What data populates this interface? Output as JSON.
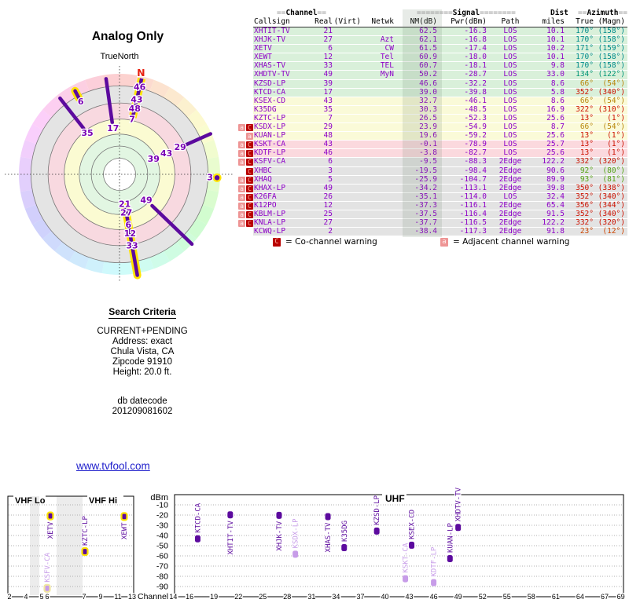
{
  "radar": {
    "title": "Analog Only",
    "north_label": "TrueNorth",
    "north_marker": "N",
    "spoke_color": "#5c0a9e",
    "label_color": "#7a00b4",
    "highlight_color": "#ffe400",
    "bands": {
      "green": "#e2f6e2",
      "yellow": "#fbfbd2",
      "pink": "#f8d9e0",
      "gray": "#e4e4e4"
    },
    "ring_fracs": [
      0.16,
      0.28,
      0.4,
      0.55,
      0.71,
      0.88
    ],
    "spokes": [
      {
        "az": 352,
        "labels": [
          {
            "t": "17",
            "r": 0.46
          }
        ],
        "line": [
          0.52,
          0.96
        ],
        "style": "plain"
      },
      {
        "az": 322,
        "labels": [
          {
            "t": "35",
            "r": 0.52
          }
        ],
        "line": [
          0.58,
          0.96
        ],
        "style": "plain"
      },
      {
        "az": 332,
        "labels": [
          {
            "t": "6",
            "r": 0.82
          }
        ],
        "line": [
          0.86,
          0.94
        ],
        "style": "yellow"
      },
      {
        "az": 13,
        "labels": [
          {
            "t": "46",
            "r": 0.89
          },
          {
            "t": "43",
            "r": 0.76
          },
          {
            "t": "48",
            "r": 0.67
          },
          {
            "t": "7",
            "r": 0.56
          }
        ],
        "line": [
          0.58,
          0.99
        ],
        "style": "yellow-dashed"
      },
      {
        "az": 66,
        "labels": [
          {
            "t": "39",
            "r": 0.37
          },
          {
            "t": "43",
            "r": 0.51
          },
          {
            "t": "29",
            "r": 0.66
          }
        ],
        "line": [
          0.67,
          0.99
        ],
        "style": "plain"
      },
      {
        "az": 92,
        "labels": [
          {
            "t": "3",
            "r": 0.9
          }
        ],
        "dot": 0.97,
        "style": "yellow"
      },
      {
        "az": 134,
        "labels": [
          {
            "t": "49",
            "r": 0.37
          }
        ],
        "line": [
          0.45,
          1.0
        ],
        "style": "plain"
      },
      {
        "az": 170,
        "labels": [
          {
            "t": "21",
            "r": 0.3
          },
          {
            "t": "27",
            "r": 0.39
          },
          {
            "t": "6",
            "r": 0.51
          },
          {
            "t": "12",
            "r": 0.6
          },
          {
            "t": "33",
            "r": 0.72
          }
        ],
        "line": [
          0.33,
          1.02
        ],
        "style": "yellow"
      }
    ]
  },
  "table": {
    "header_top": {
      "channel_eq_l": "==",
      "channel": "Channel",
      "channel_eq_r": "==",
      "signal_eq_l": "========",
      "signal": "Signal",
      "signal_eq_r": "========",
      "dist": "Dist",
      "azimuth_eq_l": "==",
      "azimuth": "Azimuth",
      "azimuth_eq_r": "=="
    },
    "columns": [
      "Callsign",
      "Real",
      "(Virt)",
      "Netwk",
      "NM(dB)",
      "Pwr(dBm)",
      "Path",
      "miles",
      "True",
      "(Magn)"
    ],
    "rows": [
      {
        "callsign": "XHTIT-TV",
        "real": "21",
        "virt": "",
        "netwk": "",
        "nm": "62.5",
        "pwr": "-16.3",
        "path": "LOS",
        "miles": "10.1",
        "true_az": "170°",
        "magn": "(158°)",
        "tier": "green",
        "az_color": "#008b8b",
        "warn": []
      },
      {
        "callsign": "XHJK-TV",
        "real": "27",
        "virt": "",
        "netwk": "Azt",
        "nm": "62.1",
        "pwr": "-16.8",
        "path": "LOS",
        "miles": "10.1",
        "true_az": "170°",
        "magn": "(158°)",
        "tier": "green",
        "az_color": "#008b8b",
        "warn": []
      },
      {
        "callsign": "XETV",
        "real": "6",
        "virt": "",
        "netwk": "CW",
        "nm": "61.5",
        "pwr": "-17.4",
        "path": "LOS",
        "miles": "10.2",
        "true_az": "171°",
        "magn": "(159°)",
        "tier": "green",
        "az_color": "#008b8b",
        "warn": []
      },
      {
        "callsign": "XEWT",
        "real": "12",
        "virt": "",
        "netwk": "Tel",
        "nm": "60.9",
        "pwr": "-18.0",
        "path": "LOS",
        "miles": "10.1",
        "true_az": "170°",
        "magn": "(158°)",
        "tier": "green",
        "az_color": "#008b8b",
        "warn": []
      },
      {
        "callsign": "XHAS-TV",
        "real": "33",
        "virt": "",
        "netwk": "TEL",
        "nm": "60.7",
        "pwr": "-18.1",
        "path": "LOS",
        "miles": "9.8",
        "true_az": "170°",
        "magn": "(158°)",
        "tier": "green",
        "az_color": "#008b8b",
        "warn": []
      },
      {
        "callsign": "XHDTV-TV",
        "real": "49",
        "virt": "",
        "netwk": "MyN",
        "nm": "50.2",
        "pwr": "-28.7",
        "path": "LOS",
        "miles": "33.0",
        "true_az": "134°",
        "magn": "(122°)",
        "tier": "green",
        "az_color": "#009577",
        "warn": []
      },
      {
        "callsign": "KZSD-LP",
        "real": "39",
        "virt": "",
        "netwk": "",
        "nm": "46.6",
        "pwr": "-32.2",
        "path": "LOS",
        "miles": "8.6",
        "true_az": "66°",
        "magn": "(54°)",
        "tier": "green",
        "az_color": "#b8860b",
        "warn": []
      },
      {
        "callsign": "KTCD-CA",
        "real": "17",
        "virt": "",
        "netwk": "",
        "nm": "39.0",
        "pwr": "-39.8",
        "path": "LOS",
        "miles": "5.8",
        "true_az": "352°",
        "magn": "(340°)",
        "tier": "green",
        "az_color": "#cc1100",
        "warn": []
      },
      {
        "callsign": "KSEX-CD",
        "real": "43",
        "virt": "",
        "netwk": "",
        "nm": "32.7",
        "pwr": "-46.1",
        "path": "LOS",
        "miles": "8.6",
        "true_az": "66°",
        "magn": "(54°)",
        "tier": "yellow",
        "az_color": "#b8860b",
        "warn": []
      },
      {
        "callsign": "K35DG",
        "real": "35",
        "virt": "",
        "netwk": "",
        "nm": "30.3",
        "pwr": "-48.5",
        "path": "LOS",
        "miles": "16.9",
        "true_az": "322°",
        "magn": "(310°)",
        "tier": "yellow",
        "az_color": "#cc1100",
        "warn": []
      },
      {
        "callsign": "KZTC-LP",
        "real": "7",
        "virt": "",
        "netwk": "",
        "nm": "26.5",
        "pwr": "-52.3",
        "path": "LOS",
        "miles": "25.6",
        "true_az": "13°",
        "magn": "(1°)",
        "tier": "yellow",
        "az_color": "#cc1100",
        "warn": []
      },
      {
        "callsign": "KSDX-LP",
        "real": "29",
        "virt": "",
        "netwk": "",
        "nm": "23.9",
        "pwr": "-54.9",
        "path": "LOS",
        "miles": "8.7",
        "true_az": "66°",
        "magn": "(54°)",
        "tier": "yellow",
        "az_color": "#b8860b",
        "warn": [
          "a",
          "C"
        ]
      },
      {
        "callsign": "KUAN-LP",
        "real": "48",
        "virt": "",
        "netwk": "",
        "nm": "19.6",
        "pwr": "-59.2",
        "path": "LOS",
        "miles": "25.6",
        "true_az": "13°",
        "magn": "(1°)",
        "tier": "yellow",
        "az_color": "#cc1100",
        "warn": [
          "a"
        ]
      },
      {
        "callsign": "KSKT-CA",
        "real": "43",
        "virt": "",
        "netwk": "",
        "nm": "-0.1",
        "pwr": "-78.9",
        "path": "LOS",
        "miles": "25.7",
        "true_az": "13°",
        "magn": "(1°)",
        "tier": "pink",
        "az_color": "#cc1100",
        "warn": [
          "a",
          "C"
        ]
      },
      {
        "callsign": "KDTF-LP",
        "real": "46",
        "virt": "",
        "netwk": "",
        "nm": "-3.8",
        "pwr": "-82.7",
        "path": "LOS",
        "miles": "25.6",
        "true_az": "13°",
        "magn": "(1°)",
        "tier": "pink",
        "az_color": "#cc1100",
        "warn": [
          "a",
          "C"
        ]
      },
      {
        "callsign": "KSFV-CA",
        "real": "6",
        "virt": "",
        "netwk": "",
        "nm": "-9.5",
        "pwr": "-88.3",
        "path": "2Edge",
        "miles": "122.2",
        "true_az": "332°",
        "magn": "(320°)",
        "tier": "gray",
        "az_color": "#cc1100",
        "warn": [
          "a",
          "C"
        ]
      },
      {
        "callsign": "XHBC",
        "real": "3",
        "virt": "",
        "netwk": "",
        "nm": "-19.5",
        "pwr": "-98.4",
        "path": "2Edge",
        "miles": "90.6",
        "true_az": "92°",
        "magn": "(80°)",
        "tier": "gray",
        "az_color": "#55a314",
        "warn": [
          "C"
        ]
      },
      {
        "callsign": "XHAQ",
        "real": "5",
        "virt": "",
        "netwk": "",
        "nm": "-25.9",
        "pwr": "-104.7",
        "path": "2Edge",
        "miles": "89.9",
        "true_az": "93°",
        "magn": "(81°)",
        "tier": "gray",
        "az_color": "#55a314",
        "warn": [
          "a",
          "C"
        ]
      },
      {
        "callsign": "KHAX-LP",
        "real": "49",
        "virt": "",
        "netwk": "",
        "nm": "-34.2",
        "pwr": "-113.1",
        "path": "2Edge",
        "miles": "39.8",
        "true_az": "350°",
        "magn": "(338°)",
        "tier": "gray",
        "az_color": "#cc1100",
        "warn": [
          "a",
          "C"
        ]
      },
      {
        "callsign": "K26FA",
        "real": "26",
        "virt": "",
        "netwk": "",
        "nm": "-35.1",
        "pwr": "-114.0",
        "path": "LOS",
        "miles": "32.4",
        "true_az": "352°",
        "magn": "(340°)",
        "tier": "gray",
        "az_color": "#cc1100",
        "warn": [
          "a",
          "C"
        ]
      },
      {
        "callsign": "K12PO",
        "real": "12",
        "virt": "",
        "netwk": "",
        "nm": "-37.3",
        "pwr": "-116.1",
        "path": "2Edge",
        "miles": "65.4",
        "true_az": "356°",
        "magn": "(344°)",
        "tier": "gray",
        "az_color": "#cc1100",
        "warn": [
          "a",
          "C"
        ]
      },
      {
        "callsign": "KBLM-LP",
        "real": "25",
        "virt": "",
        "netwk": "",
        "nm": "-37.5",
        "pwr": "-116.4",
        "path": "2Edge",
        "miles": "91.5",
        "true_az": "352°",
        "magn": "(340°)",
        "tier": "gray",
        "az_color": "#cc1100",
        "warn": [
          "a",
          "C"
        ]
      },
      {
        "callsign": "KNLA-LP",
        "real": "27",
        "virt": "",
        "netwk": "",
        "nm": "-37.7",
        "pwr": "-116.5",
        "path": "2Edge",
        "miles": "122.2",
        "true_az": "332°",
        "magn": "(320°)",
        "tier": "gray",
        "az_color": "#cc1100",
        "warn": [
          "a",
          "C"
        ]
      },
      {
        "callsign": "KCWQ-LP",
        "real": "2",
        "virt": "",
        "netwk": "",
        "nm": "-38.4",
        "pwr": "-117.3",
        "path": "2Edge",
        "miles": "91.8",
        "true_az": "23°",
        "magn": "(12°)",
        "tier": "gray",
        "az_color": "#cc4400",
        "warn": []
      }
    ]
  },
  "warn_legend": {
    "c_symbol": "C",
    "c_text": "= Co-channel warning",
    "a_symbol": "a",
    "a_text": "= Adjacent channel warning"
  },
  "search": {
    "heading": "Search Criteria",
    "lines": [
      "CURRENT+PENDING",
      "Address: exact",
      "Chula Vista, CA",
      "Zipcode 91910",
      "Height: 20.0 ft."
    ],
    "db_label": "db datecode",
    "db_value": "201209081602"
  },
  "link_text": "www.tvfool.com",
  "chart_data": {
    "type": "bar",
    "ylabel": "dBm",
    "xlabel": "Channel",
    "ylim": [
      -95,
      -5
    ],
    "yticks": [
      -10,
      -20,
      -30,
      -40,
      -50,
      -60,
      -70,
      -80,
      -90
    ],
    "bar_colors": {
      "strong": "#5c0a9e",
      "weak": "#c79ce8",
      "outline": "#ffe400"
    },
    "sections": [
      {
        "name": "VHF",
        "band_labels": [
          "VHF Lo",
          "VHF Hi"
        ],
        "ticks": [
          {
            "ch": "2",
            "x": 12
          },
          {
            "ch": "4",
            "x": 33
          },
          {
            "ch": "5",
            "x": 53
          },
          {
            "ch": "6",
            "x": 60
          },
          {
            "ch": "7",
            "x": 107
          },
          {
            "ch": "9",
            "x": 128
          },
          {
            "ch": "11",
            "x": 150
          },
          {
            "ch": "13",
            "x": 168
          }
        ],
        "gray_bands": [
          [
            38,
            50
          ],
          [
            72,
            105
          ]
        ],
        "bars": [
          {
            "callsign": "KSFV-CA",
            "ch": 6,
            "dbm": -88.3,
            "x": 60,
            "weak": true,
            "outline": true,
            "side": "above"
          },
          {
            "callsign": "XETV",
            "ch": 6,
            "dbm": -17.4,
            "x": 64,
            "weak": false,
            "outline": true,
            "side": "below"
          },
          {
            "callsign": "KZTC-LP",
            "ch": 7,
            "dbm": -52.3,
            "x": 108,
            "weak": false,
            "outline": true,
            "side": "above"
          },
          {
            "callsign": "XEWT",
            "ch": 12,
            "dbm": -18.0,
            "x": 158,
            "weak": false,
            "outline": true,
            "side": "below"
          }
        ]
      },
      {
        "name": "UHF",
        "band_labels": [
          "UHF"
        ],
        "channel_ticks": [
          14,
          16,
          19,
          22,
          25,
          28,
          31,
          34,
          37,
          40,
          43,
          46,
          49,
          52,
          55,
          58,
          61,
          64,
          67,
          69
        ],
        "bars": [
          {
            "callsign": "KTCD-CA",
            "ch": 17,
            "dbm": -39.8,
            "weak": false,
            "side": "above"
          },
          {
            "callsign": "XHTIT-TV",
            "ch": 21,
            "dbm": -16.3,
            "weak": false,
            "side": "below"
          },
          {
            "callsign": "XHJK-TV",
            "ch": 27,
            "dbm": -16.8,
            "weak": false,
            "side": "below"
          },
          {
            "callsign": "KSDX-LP",
            "ch": 29,
            "dbm": -54.9,
            "weak": true,
            "side": "above"
          },
          {
            "callsign": "XHAS-TV",
            "ch": 33,
            "dbm": -18.1,
            "weak": false,
            "side": "below"
          },
          {
            "callsign": "K35DG",
            "ch": 35,
            "dbm": -48.5,
            "weak": false,
            "side": "above"
          },
          {
            "callsign": "KZSD-LP",
            "ch": 39,
            "dbm": -32.2,
            "weak": false,
            "side": "above"
          },
          {
            "callsign": "KSKT-CA",
            "ch": 43,
            "dbm": -78.9,
            "weak": true,
            "side": "above",
            "dx": -5
          },
          {
            "callsign": "KSEX-CD",
            "ch": 43,
            "dbm": -46.1,
            "weak": false,
            "side": "above",
            "dx": 3
          },
          {
            "callsign": "KDTF-LP",
            "ch": 46,
            "dbm": -82.7,
            "weak": true,
            "side": "above"
          },
          {
            "callsign": "KUAN-LP",
            "ch": 48,
            "dbm": -59.2,
            "weak": false,
            "side": "above"
          },
          {
            "callsign": "XHDTV-TV",
            "ch": 49,
            "dbm": -28.7,
            "weak": false,
            "side": "above"
          }
        ]
      }
    ]
  }
}
